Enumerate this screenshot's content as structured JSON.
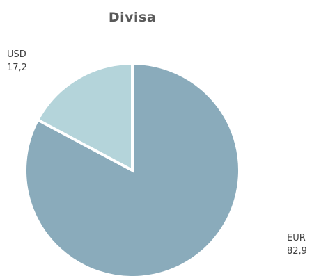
{
  "chart_data": {
    "type": "pie",
    "title": "Divisa",
    "slices": [
      {
        "label": "EUR",
        "value": 82.9,
        "value_label": "82,9",
        "color": "#8aabbb"
      },
      {
        "label": "USD",
        "value": 17.2,
        "value_label": "17,2",
        "color": "#b4d4da"
      }
    ],
    "separator_color": "#ffffff",
    "legend": "none"
  }
}
